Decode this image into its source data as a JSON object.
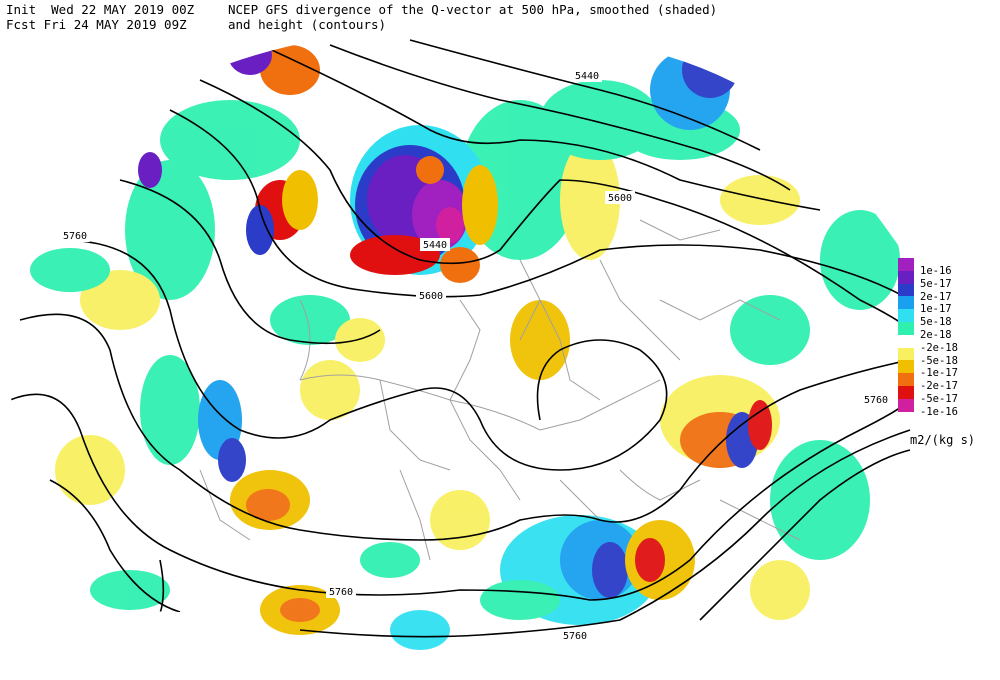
{
  "header": {
    "init_line": "Init  Wed 22 MAY 2019 00Z",
    "fcst_line": "Fcst Fri 24 MAY 2019 09Z",
    "title_line1": "NCEP GFS divergence of the Q-vector at 500 hPa, smoothed (shaded)",
    "title_line2": "and height (contours)"
  },
  "legend": {
    "units": "m2/(kg s)",
    "entries": [
      {
        "label": "1e-16",
        "color": "#a020c0"
      },
      {
        "label": "5e-17",
        "color": "#6a1fc2"
      },
      {
        "label": "2e-17",
        "color": "#2a3cc8"
      },
      {
        "label": "1e-17",
        "color": "#1aa0f0"
      },
      {
        "label": "5e-18",
        "color": "#30e0f0"
      },
      {
        "label": "2e-18",
        "color": "#30f0b0"
      },
      {
        "label": "-2e-18",
        "color": "#ffffff"
      },
      {
        "label": "-5e-18",
        "color": "#f8f060"
      },
      {
        "label": "-1e-17",
        "color": "#f0c000"
      },
      {
        "label": "-2e-17",
        "color": "#f07010"
      },
      {
        "label": "-5e-17",
        "color": "#e01010"
      },
      {
        "label": "-1e-16",
        "color": "#d020a0"
      }
    ]
  },
  "contour_labels": [
    "5440",
    "5600",
    "5760",
    "5440",
    "5600",
    "5760",
    "5760",
    "5760"
  ],
  "colors": {
    "contour": "#000000",
    "border": "#a0a0a0"
  }
}
